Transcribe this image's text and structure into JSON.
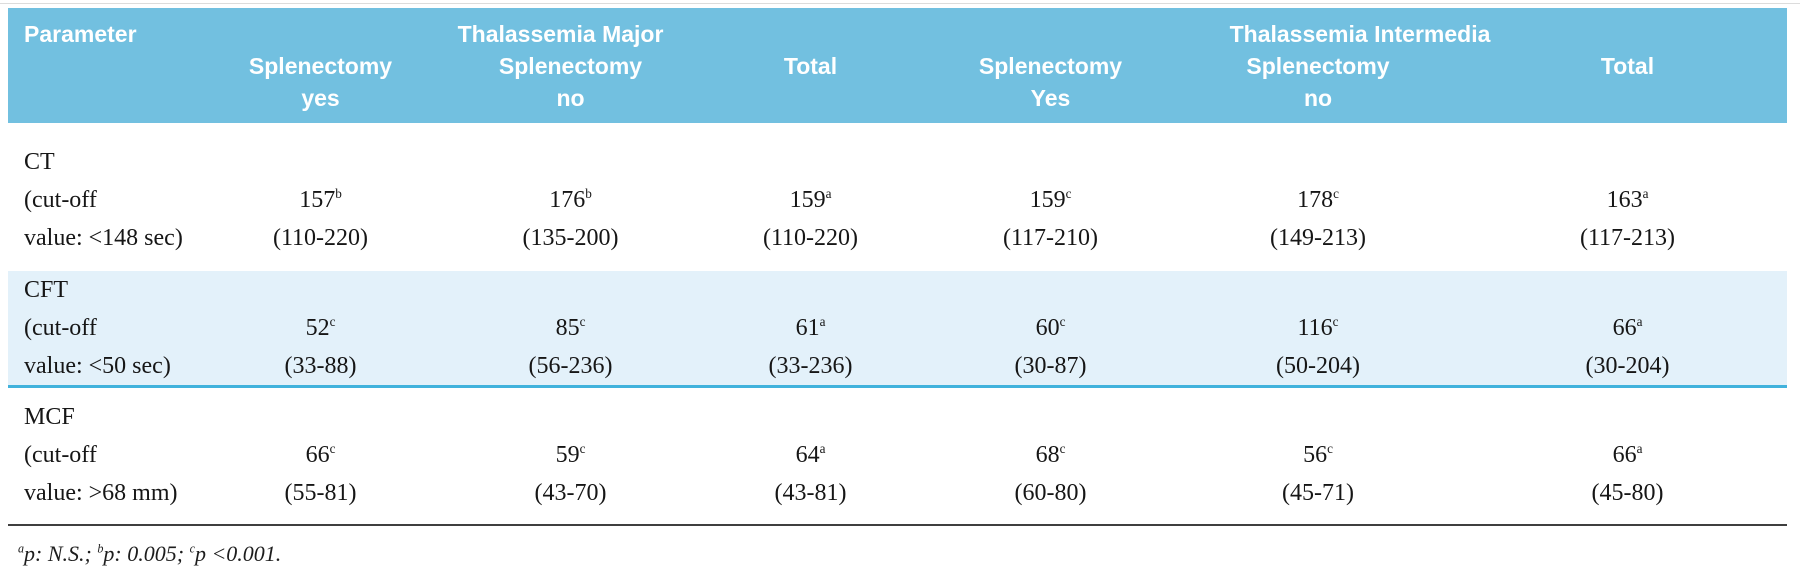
{
  "table": {
    "header": {
      "parameter_label": "Parameter",
      "groups": [
        {
          "label": "Thalassemia Major"
        },
        {
          "label": "Thalassemia Intermedia"
        }
      ],
      "columns": [
        {
          "line1": "Splenectomy",
          "line2": "yes"
        },
        {
          "line1": "Splenectomy",
          "line2": "no"
        },
        {
          "line1": "Total",
          "line2": ""
        },
        {
          "line1": "Splenectomy",
          "line2": "Yes"
        },
        {
          "line1": "Splenectomy",
          "line2": "no"
        },
        {
          "line1": "Total",
          "line2": ""
        }
      ]
    },
    "rows": [
      {
        "name": "CT",
        "cutoff_line1": "(cut-off",
        "cutoff_line2": "value: <148 sec)",
        "highlight": false,
        "cells": [
          {
            "value": "157",
            "sup": "b",
            "range": "(110-220)"
          },
          {
            "value": "176",
            "sup": "b",
            "range": "(135-200)"
          },
          {
            "value": "159",
            "sup": "a",
            "range": "(110-220)"
          },
          {
            "value": "159",
            "sup": "c",
            "range": "(117-210)"
          },
          {
            "value": "178",
            "sup": "c",
            "range": "(149-213)"
          },
          {
            "value": "163",
            "sup": "a",
            "range": "(117-213)"
          }
        ]
      },
      {
        "name": "CFT",
        "cutoff_line1": "(cut-off",
        "cutoff_line2": "value: <50 sec)",
        "highlight": true,
        "cells": [
          {
            "value": "52",
            "sup": "c",
            "range": "(33-88)"
          },
          {
            "value": "85",
            "sup": "c",
            "range": "(56-236)"
          },
          {
            "value": "61",
            "sup": "a",
            "range": "(33-236)"
          },
          {
            "value": "60",
            "sup": "c",
            "range": "(30-87)"
          },
          {
            "value": "116",
            "sup": "c",
            "range": "(50-204)"
          },
          {
            "value": "66",
            "sup": "a",
            "range": "(30-204)"
          }
        ]
      },
      {
        "name": "MCF",
        "cutoff_line1": "(cut-off",
        "cutoff_line2": "value: >68 mm)",
        "highlight": false,
        "cells": [
          {
            "value": "66",
            "sup": "c",
            "range": "(55-81)"
          },
          {
            "value": "59",
            "sup": "c",
            "range": "(43-70)"
          },
          {
            "value": "64",
            "sup": "a",
            "range": "(43-81)"
          },
          {
            "value": "68",
            "sup": "c",
            "range": "(60-80)"
          },
          {
            "value": "56",
            "sup": "c",
            "range": "(45-71)"
          },
          {
            "value": "66",
            "sup": "a",
            "range": "(45-80)"
          }
        ]
      }
    ],
    "footnote": {
      "parts": [
        {
          "sup": "a",
          "text": "p: N.S.; "
        },
        {
          "sup": "b",
          "text": "p: 0.005; "
        },
        {
          "sup": "c",
          "text": "p <0.001."
        }
      ]
    },
    "colors": {
      "header_bg": "#72C0E0",
      "highlight_bg": "#E3F1FA",
      "highlight_border": "#41B2DC",
      "rule": "#3F3F3F"
    }
  }
}
